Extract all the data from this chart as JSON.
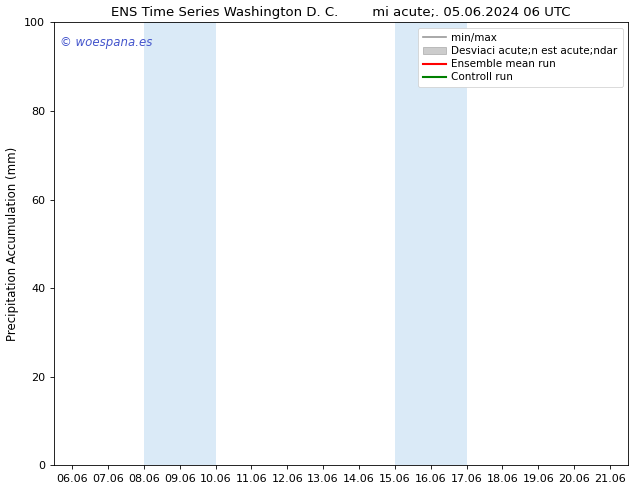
{
  "title_left": "ENS Time Series Washington D. C.",
  "title_right": "mi acute;. 05.06.2024 06 UTC",
  "ylabel": "Precipitation Accumulation (mm)",
  "ylim": [
    0,
    100
  ],
  "x_tick_labels": [
    "06.06",
    "07.06",
    "08.06",
    "09.06",
    "10.06",
    "11.06",
    "12.06",
    "13.06",
    "14.06",
    "15.06",
    "16.06",
    "17.06",
    "18.06",
    "19.06",
    "20.06",
    "21.06"
  ],
  "y_tick_labels": [
    "0",
    "20",
    "40",
    "60",
    "80",
    "100"
  ],
  "y_tick_positions": [
    0,
    20,
    40,
    60,
    80,
    100
  ],
  "shaded_regions": [
    {
      "xmin": 2,
      "xmax": 4,
      "color": "#daeaf7"
    },
    {
      "xmin": 9,
      "xmax": 11,
      "color": "#daeaf7"
    }
  ],
  "watermark_text": "© woespana.es",
  "watermark_color": "#4455cc",
  "legend_items": [
    {
      "label": "min/max",
      "type": "line",
      "color": "#999999",
      "lw": 1.2
    },
    {
      "label": "Desviaci acute;n est acute;ndar",
      "type": "patch",
      "color": "#cccccc"
    },
    {
      "label": "Ensemble mean run",
      "type": "line",
      "color": "red",
      "lw": 1.5
    },
    {
      "label": "Controll run",
      "type": "line",
      "color": "green",
      "lw": 1.5
    }
  ],
  "background_color": "#ffffff",
  "title_fontsize": 9.5,
  "ylabel_fontsize": 8.5,
  "tick_fontsize": 8,
  "watermark_fontsize": 8.5,
  "legend_fontsize": 7.5
}
